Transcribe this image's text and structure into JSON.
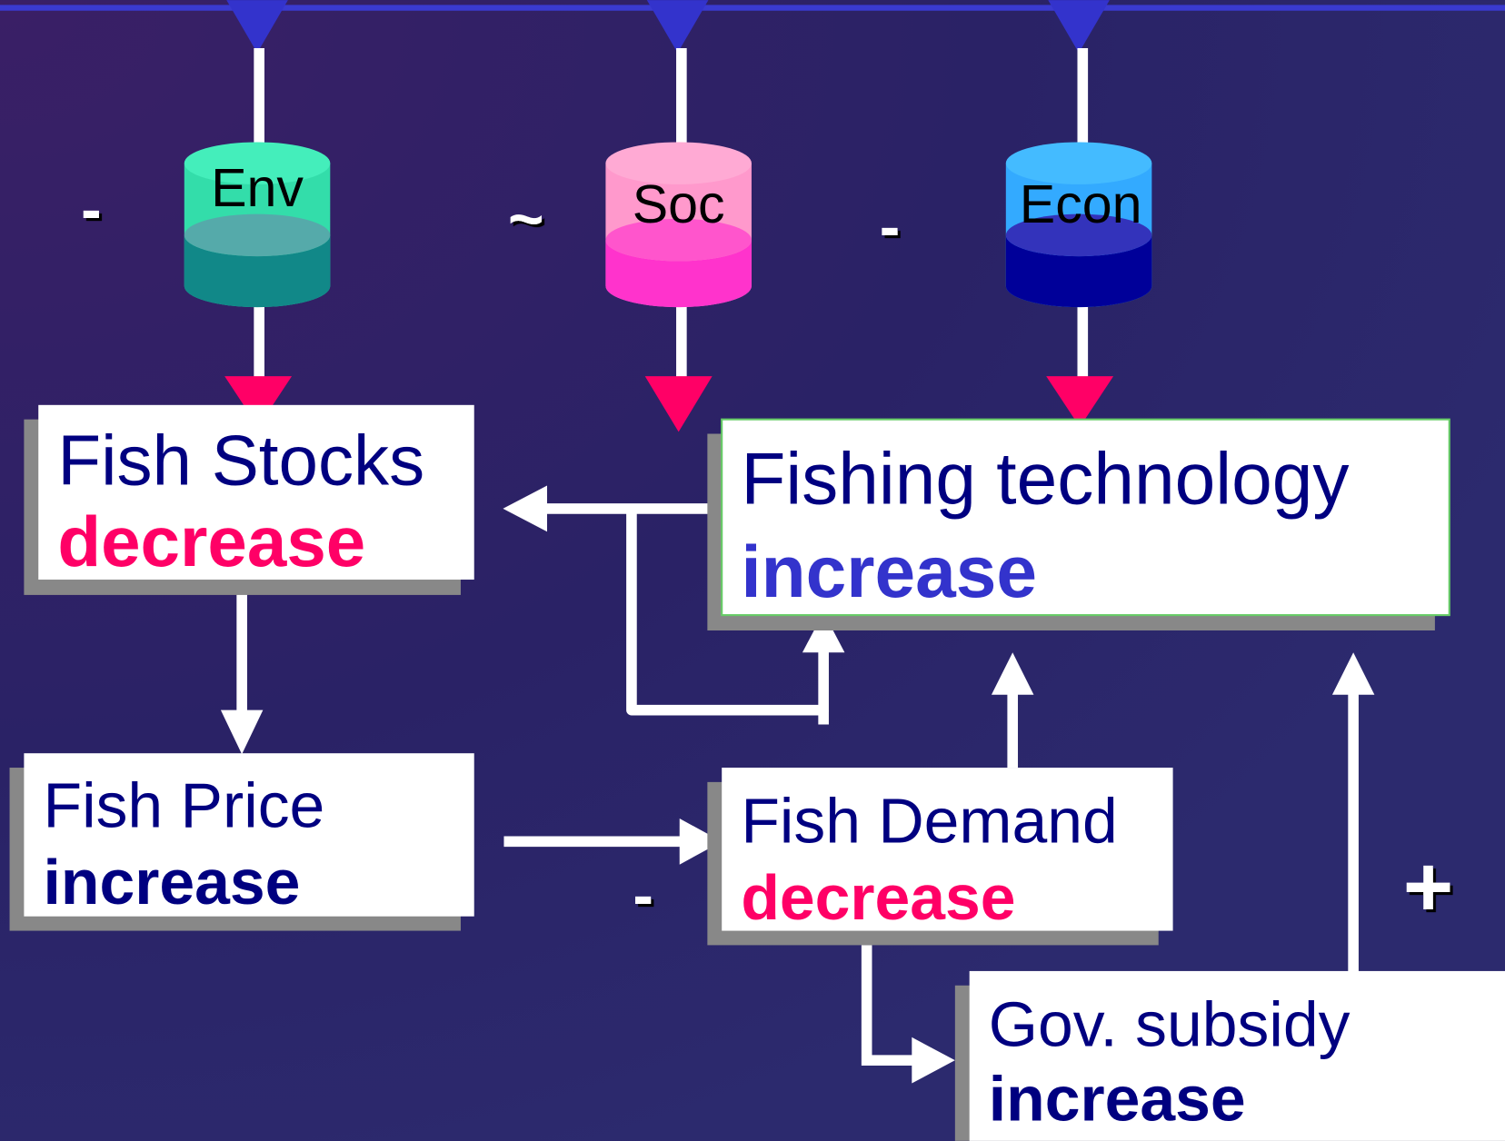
{
  "cylinders": [
    {
      "label": "Env"
    },
    {
      "label": "Soc"
    },
    {
      "label": "Econ"
    }
  ],
  "signs": [
    "-",
    "~",
    "-",
    "-",
    "+"
  ],
  "nodes": [
    {
      "label": "Fish Stocks",
      "state": "decrease"
    },
    {
      "label": "Fishing technology",
      "state": "increase"
    },
    {
      "label": "Fish Price",
      "state": "increase"
    },
    {
      "label": "Fish Demand",
      "state": "decrease"
    },
    {
      "label": "Gov. subsidy",
      "state": "increase"
    }
  ]
}
